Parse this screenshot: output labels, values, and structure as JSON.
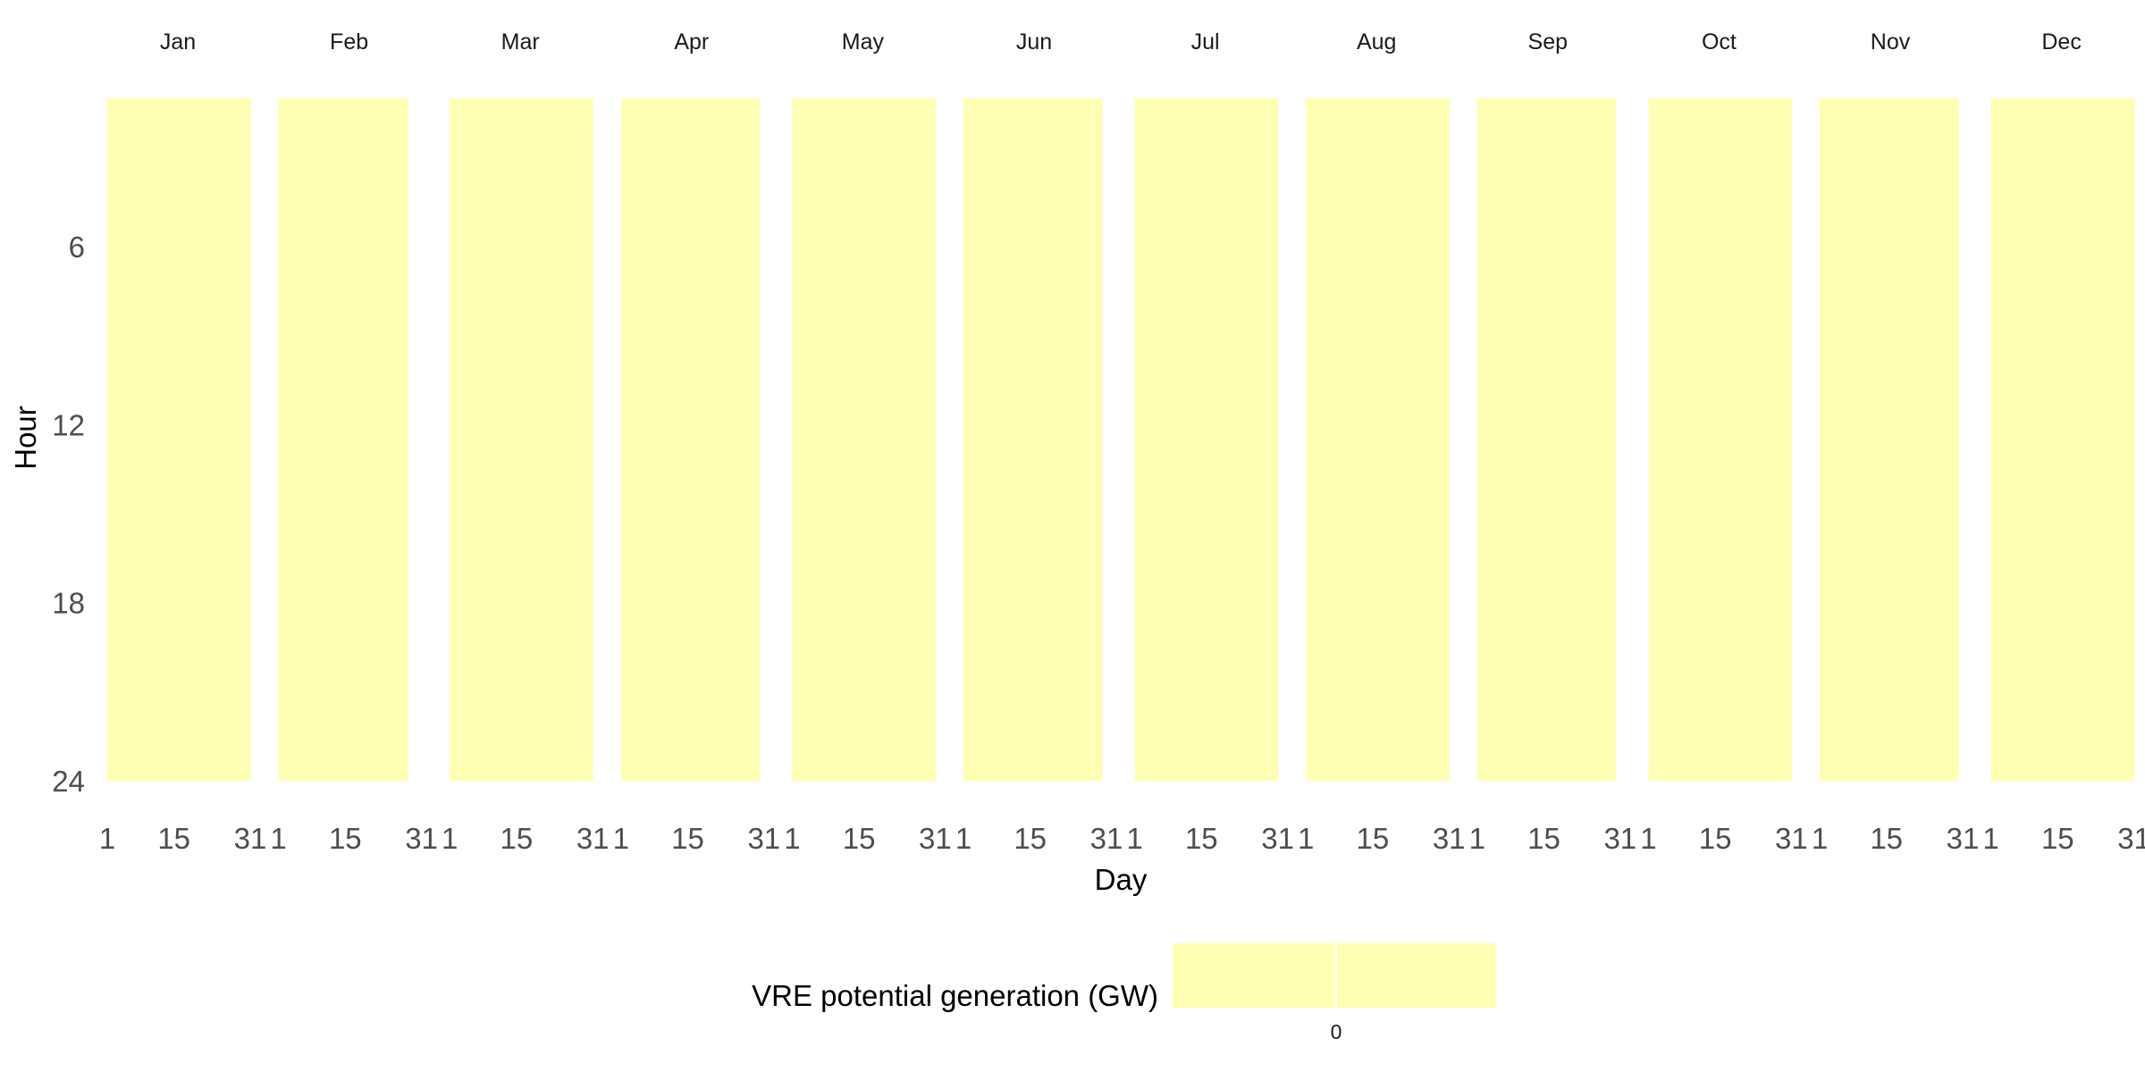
{
  "chart_data": {
    "type": "heatmap",
    "facets": [
      {
        "month": "Jan",
        "days": 31
      },
      {
        "month": "Feb",
        "days": 28
      },
      {
        "month": "Mar",
        "days": 31
      },
      {
        "month": "Apr",
        "days": 30
      },
      {
        "month": "May",
        "days": 31
      },
      {
        "month": "Jun",
        "days": 30
      },
      {
        "month": "Jul",
        "days": 31
      },
      {
        "month": "Aug",
        "days": 31
      },
      {
        "month": "Sep",
        "days": 30
      },
      {
        "month": "Oct",
        "days": 31
      },
      {
        "month": "Nov",
        "days": 30
      },
      {
        "month": "Dec",
        "days": 31
      }
    ],
    "x_ticks": [
      1,
      15,
      31
    ],
    "y_ticks": [
      6,
      12,
      18,
      24
    ],
    "y_range": [
      1,
      24
    ],
    "xlabel": "Day",
    "ylabel": "Hour",
    "value_all_cells": 0,
    "cell_color": "#ffffb3",
    "legend": {
      "title": "VRE potential generation (GW)",
      "ticks": [
        0
      ],
      "position": "bottom",
      "color": "#ffffb3"
    }
  }
}
